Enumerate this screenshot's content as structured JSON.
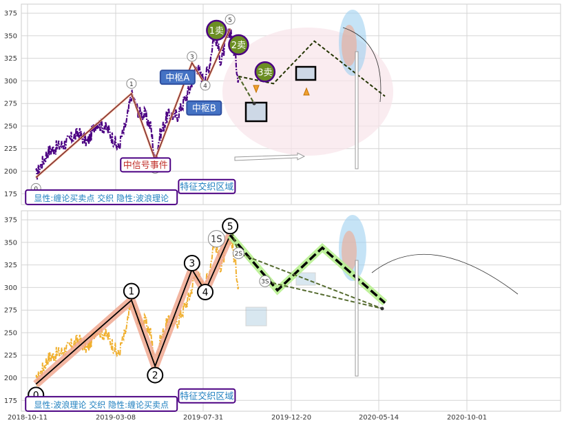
{
  "chart_data": [
    {
      "panel": "top",
      "type": "line",
      "title": "",
      "xlabel": "",
      "ylabel": "",
      "ylim": [
        163,
        385
      ],
      "yticks": [
        175,
        200,
        225,
        250,
        275,
        300,
        325,
        350,
        375
      ],
      "grid": true,
      "x_range": [
        "2018-10-11",
        "2021-04-15"
      ],
      "series": [
        {
          "role": "price",
          "style": "dash-dot",
          "color": "#4b0082",
          "anchors": [
            [
              "2018-11-01",
              195
            ],
            [
              "2018-12-01",
              222
            ],
            [
              "2019-01-10",
              230
            ],
            [
              "2019-02-15",
              242
            ],
            [
              "2019-03-10",
              232
            ],
            [
              "2019-04-01",
              255
            ],
            [
              "2019-05-01",
              245
            ],
            [
              "2019-05-25",
              225
            ],
            [
              "2019-06-15",
              255
            ],
            [
              "2019-06-27",
              285
            ],
            [
              "2019-07-15",
              265
            ],
            [
              "2019-07-31",
              262
            ],
            [
              "2019-08-15",
              248
            ],
            [
              "2019-08-25",
              208
            ],
            [
              "2019-09-05",
              238
            ],
            [
              "2019-09-25",
              262
            ],
            [
              "2019-10-20",
              262
            ],
            [
              "2019-11-20",
              292
            ],
            [
              "2019-12-05",
              318
            ],
            [
              "2019-12-20",
              302
            ],
            [
              "2020-01-05",
              312
            ],
            [
              "2020-01-20",
              355
            ],
            [
              "2020-02-05",
              322
            ],
            [
              "2020-02-20",
              346
            ],
            [
              "2020-03-01",
              356
            ],
            [
              "2020-03-10",
              330
            ],
            [
              "2020-03-20",
              302
            ]
          ]
        },
        {
          "role": "stroke-path",
          "color": "#e8a080",
          "points": [
            [
              "2018-11-01",
              193
            ],
            [
              "2019-06-27",
              286
            ],
            [
              "2019-08-25",
              213
            ],
            [
              "2019-11-25",
              320
            ],
            [
              "2019-12-28",
              296
            ],
            [
              "2020-02-28",
              358
            ]
          ]
        },
        {
          "role": "forecast",
          "style": "dashed",
          "color": "#556b2f",
          "points": [
            [
              "2020-03-20",
              305
            ],
            [
              "2020-04-28",
              275
            ],
            [
              "2020-06-15",
              297
            ],
            [
              "2020-09-25",
              344
            ],
            [
              "2021-03-20",
              283
            ]
          ]
        }
      ],
      "points": [
        {
          "label": "0",
          "x": "2018-11-01",
          "y": 181
        },
        {
          "label": "1",
          "x": "2019-06-27",
          "y": 297
        },
        {
          "label": "2",
          "x": "2019-08-25",
          "y": 203
        },
        {
          "label": "3",
          "x": "2019-11-25",
          "y": 327
        },
        {
          "label": "4",
          "x": "2019-12-28",
          "y": 295
        },
        {
          "label": "5",
          "x": "2020-02-28",
          "y": 368
        }
      ],
      "annotations": [
        {
          "text": "1卖",
          "x": "2020-01-25",
          "y": 356
        },
        {
          "text": "2卖",
          "x": "2020-03-20",
          "y": 340
        },
        {
          "text": "3卖",
          "x": "2020-05-25",
          "y": 310
        },
        {
          "text": "中枢A",
          "x": "2019-10-20",
          "y": 304
        },
        {
          "text": "中枢B",
          "x": "2019-12-25",
          "y": 270
        },
        {
          "text": "中信号事件",
          "x": "2019-08-01",
          "y": 207
        },
        {
          "text": "特征交织区域",
          "x": "2020-01-01",
          "y": 183
        },
        {
          "text": "显性:缠论买卖点 交织 隐性:波浪理论",
          "x": "2018-11-25",
          "y": 170
        }
      ]
    },
    {
      "panel": "bottom",
      "type": "line",
      "title": "",
      "xlabel": "",
      "ylabel": "",
      "ylim": [
        163,
        385
      ],
      "yticks": [
        175,
        200,
        225,
        250,
        275,
        300,
        325,
        350,
        375
      ],
      "xticks": [
        "2018-10-11",
        "2019-03-08",
        "2019-07-31",
        "2019-12-20",
        "2020-05-14",
        "2020-10-01"
      ],
      "grid": true,
      "x_range": [
        "2018-10-11",
        "2021-04-15"
      ],
      "series": [
        {
          "role": "price",
          "style": "dash-dot",
          "color": "#f0b030",
          "anchors": [
            [
              "2018-11-01",
              195
            ],
            [
              "2018-12-01",
              222
            ],
            [
              "2019-01-10",
              230
            ],
            [
              "2019-02-15",
              242
            ],
            [
              "2019-03-10",
              232
            ],
            [
              "2019-04-01",
              255
            ],
            [
              "2019-05-01",
              245
            ],
            [
              "2019-05-25",
              225
            ],
            [
              "2019-06-15",
              255
            ],
            [
              "2019-06-27",
              285
            ],
            [
              "2019-07-15",
              265
            ],
            [
              "2019-07-31",
              262
            ],
            [
              "2019-08-15",
              248
            ],
            [
              "2019-08-25",
              208
            ],
            [
              "2019-09-05",
              238
            ],
            [
              "2019-09-25",
              262
            ],
            [
              "2019-10-20",
              262
            ],
            [
              "2019-11-20",
              292
            ],
            [
              "2019-12-05",
              318
            ],
            [
              "2019-12-20",
              302
            ],
            [
              "2020-01-05",
              312
            ],
            [
              "2020-01-20",
              355
            ],
            [
              "2020-02-05",
              322
            ],
            [
              "2020-02-20",
              346
            ],
            [
              "2020-03-01",
              356
            ],
            [
              "2020-03-10",
              330
            ],
            [
              "2020-03-20",
              302
            ]
          ]
        },
        {
          "role": "wave-path",
          "color": "#000000",
          "points": [
            [
              "2018-11-01",
              193
            ],
            [
              "2019-06-27",
              286
            ],
            [
              "2019-08-25",
              213
            ],
            [
              "2019-11-25",
              320
            ],
            [
              "2019-12-28",
              296
            ],
            [
              "2020-02-28",
              358
            ]
          ]
        },
        {
          "role": "forecast",
          "style": "dashed",
          "color": "#000000",
          "points": [
            [
              "2020-02-28",
              358
            ],
            [
              "2020-06-25",
              297
            ],
            [
              "2020-10-15",
              344
            ],
            [
              "2021-03-20",
              283
            ]
          ]
        }
      ],
      "points": [
        {
          "label": "0",
          "x": "2018-11-01",
          "y": 181
        },
        {
          "label": "1",
          "x": "2019-06-27",
          "y": 296
        },
        {
          "label": "2",
          "x": "2019-08-25",
          "y": 203
        },
        {
          "label": "3",
          "x": "2019-11-25",
          "y": 327
        },
        {
          "label": "4",
          "x": "2019-12-28",
          "y": 295
        },
        {
          "label": "5",
          "x": "2020-02-28",
          "y": 368
        },
        {
          "label": "1S",
          "x": "2020-01-25",
          "y": 354
        },
        {
          "label": "2S",
          "x": "2020-03-20",
          "y": 338
        },
        {
          "label": "3S",
          "x": "2020-05-25",
          "y": 307
        }
      ],
      "annotations": [
        {
          "text": "特征交织区域",
          "x": "2020-01-01",
          "y": 180
        },
        {
          "text": "显性:波浪理论 交织 隐性:缠论买卖点",
          "x": "2018-11-25",
          "y": 170
        }
      ]
    }
  ]
}
